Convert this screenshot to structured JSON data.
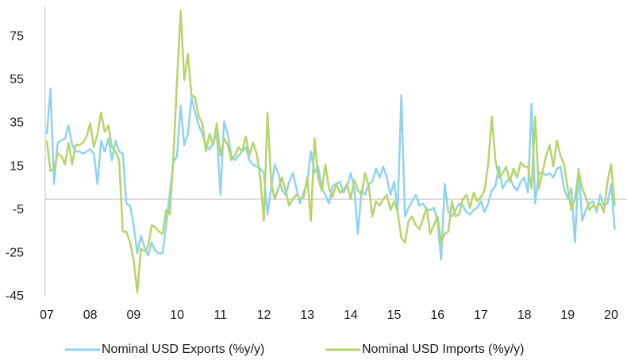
{
  "chart_data": {
    "type": "line",
    "categories": [
      "07",
      null,
      null,
      null,
      null,
      null,
      null,
      null,
      null,
      null,
      null,
      null,
      "08",
      null,
      null,
      null,
      null,
      null,
      null,
      null,
      null,
      null,
      null,
      null,
      "09",
      null,
      null,
      null,
      null,
      null,
      null,
      null,
      null,
      null,
      null,
      null,
      "10",
      null,
      null,
      null,
      null,
      null,
      null,
      null,
      null,
      null,
      null,
      null,
      "11",
      null,
      null,
      null,
      null,
      null,
      null,
      null,
      null,
      null,
      null,
      null,
      "12",
      null,
      null,
      null,
      null,
      null,
      null,
      null,
      null,
      null,
      null,
      null,
      "13",
      null,
      null,
      null,
      null,
      null,
      null,
      null,
      null,
      null,
      null,
      null,
      "14",
      null,
      null,
      null,
      null,
      null,
      null,
      null,
      null,
      null,
      null,
      null,
      "15",
      null,
      null,
      null,
      null,
      null,
      null,
      null,
      null,
      null,
      null,
      null,
      "16",
      null,
      null,
      null,
      null,
      null,
      null,
      null,
      null,
      null,
      null,
      null,
      "17",
      null,
      null,
      null,
      null,
      null,
      null,
      null,
      null,
      null,
      null,
      null,
      "18",
      null,
      null,
      null,
      null,
      null,
      null,
      null,
      null,
      null,
      null,
      null,
      "19",
      null,
      null,
      null,
      null,
      null,
      null,
      null,
      null,
      null,
      null,
      null,
      "20",
      null
    ],
    "series": [
      {
        "name": "Nominal USD Exports (%y/y)",
        "color": "#8fd3f0",
        "values": [
          30,
          51,
          7,
          26,
          27,
          28,
          34,
          25,
          22,
          22,
          21,
          22,
          23,
          21,
          7,
          27,
          22,
          28,
          18,
          27,
          22,
          21,
          -2,
          -3,
          -12,
          -25,
          -17,
          -22,
          -26,
          -20,
          -24,
          -25,
          -25,
          -12,
          3,
          17,
          20,
          43,
          25,
          30,
          47,
          40,
          34,
          30,
          25,
          23,
          26,
          30,
          2,
          36,
          30,
          20,
          18,
          20,
          22,
          24,
          18,
          16,
          15,
          14,
          12,
          -7,
          5,
          16,
          12,
          4,
          2,
          8,
          12,
          5,
          -2,
          3,
          8,
          22,
          12,
          15,
          5,
          2,
          -2,
          6,
          7,
          8,
          3,
          6,
          12,
          5,
          -16,
          4,
          2,
          7,
          8,
          14,
          10,
          15,
          10,
          2,
          8,
          -5,
          48,
          -8,
          -4,
          -1,
          2,
          -3,
          -2,
          -5,
          -5,
          -4,
          -10,
          -28,
          7,
          -6,
          -8,
          -5,
          -2,
          -3,
          -6,
          -7,
          -5,
          -4,
          -1,
          -6,
          -2,
          4,
          6,
          15,
          5,
          8,
          10,
          6,
          4,
          8,
          10,
          3,
          44,
          -2,
          12,
          12,
          11,
          12,
          10,
          14,
          15,
          5,
          0,
          5,
          -20,
          14,
          -10,
          -5,
          -2,
          -1,
          -6,
          2,
          -3,
          -2,
          7,
          -14
        ]
      },
      {
        "name": "Nominal USD Imports (%y/y)",
        "color": "#b5d56a",
        "values": [
          27,
          13,
          14,
          21,
          20,
          16,
          26,
          16,
          25,
          25,
          26,
          29,
          35,
          24,
          30,
          40,
          31,
          34,
          24,
          22,
          18,
          -15,
          -15,
          -20,
          -28,
          -43,
          -23,
          -24,
          -22,
          -12,
          -13,
          -15,
          -16,
          -5,
          -7,
          20,
          55,
          87,
          55,
          67,
          48,
          47,
          38,
          35,
          22,
          30,
          25,
          35,
          20,
          28,
          25,
          18,
          20,
          24,
          22,
          29,
          20,
          26,
          21,
          10,
          -10,
          40,
          8,
          0,
          5,
          10,
          4,
          -3,
          0,
          2,
          0,
          1,
          10,
          -10,
          28,
          10,
          4,
          16,
          5,
          1,
          7,
          3,
          4,
          7,
          0,
          9,
          4,
          2,
          12,
          6,
          -8,
          -1,
          -3,
          0,
          2,
          -5,
          -1,
          -6,
          -18,
          -20,
          -10,
          -8,
          -12,
          -14,
          -9,
          -4,
          -16,
          -12,
          -8,
          -20,
          -16,
          -15,
          -1,
          -8,
          -7,
          0,
          2,
          -4,
          3,
          -1,
          1,
          4,
          16,
          38,
          18,
          10,
          12,
          15,
          8,
          14,
          10,
          17,
          15,
          15,
          5,
          38,
          5,
          12,
          20,
          25,
          15,
          27,
          20,
          16,
          5,
          -5,
          0,
          13,
          5,
          1,
          -5,
          -3,
          -4,
          -2,
          -6,
          8,
          16,
          -3
        ]
      }
    ],
    "ylim": [
      -45,
      89
    ],
    "yticks": [
      75,
      55,
      35,
      15,
      -5,
      -25,
      -45
    ],
    "grid": false
  }
}
